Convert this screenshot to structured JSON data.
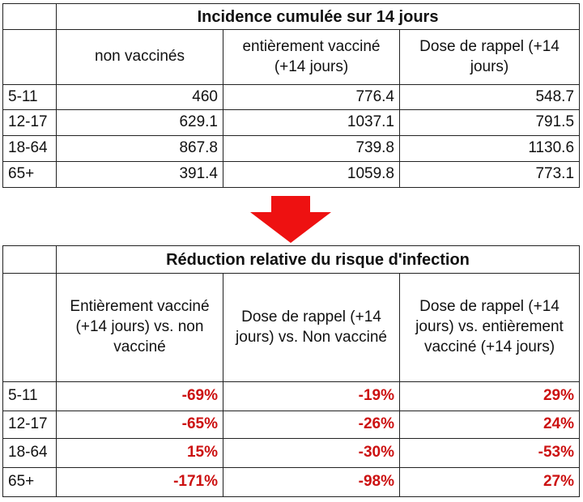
{
  "table1": {
    "title": "Incidence cumulée sur 14 jours",
    "headers": [
      "non vaccinés",
      "entièrement vacciné (+14 jours)",
      "Dose de rappel (+14 jours)"
    ],
    "rows": [
      {
        "age": "5-11",
        "values": [
          "460",
          "776.4",
          "548.7"
        ]
      },
      {
        "age": "12-17",
        "values": [
          "629.1",
          "1037.1",
          "791.5"
        ]
      },
      {
        "age": "18-64",
        "values": [
          "867.8",
          "739.8",
          "1130.6"
        ]
      },
      {
        "age": "65+",
        "values": [
          "391.4",
          "1059.8",
          "773.1"
        ]
      }
    ]
  },
  "arrow": {
    "icon": "down-arrow-icon",
    "color": "#ee1111"
  },
  "table2": {
    "title": "Réduction relative du risque d'infection",
    "headers": [
      "Entièrement vacciné (+14 jours) vs. non vacciné",
      "Dose de rappel (+14 jours) vs. Non vacciné",
      "Dose de rappel (+14 jours) vs. entièrement vacciné (+14 jours)"
    ],
    "rows": [
      {
        "age": "5-11",
        "values": [
          "-69%",
          "-19%",
          "29%"
        ]
      },
      {
        "age": "12-17",
        "values": [
          "-65%",
          "-26%",
          "24%"
        ]
      },
      {
        "age": "18-64",
        "values": [
          "15%",
          "-30%",
          "-53%"
        ]
      },
      {
        "age": "65+",
        "values": [
          "-171%",
          "-98%",
          "27%"
        ]
      }
    ],
    "value_color": "#cc1111"
  }
}
